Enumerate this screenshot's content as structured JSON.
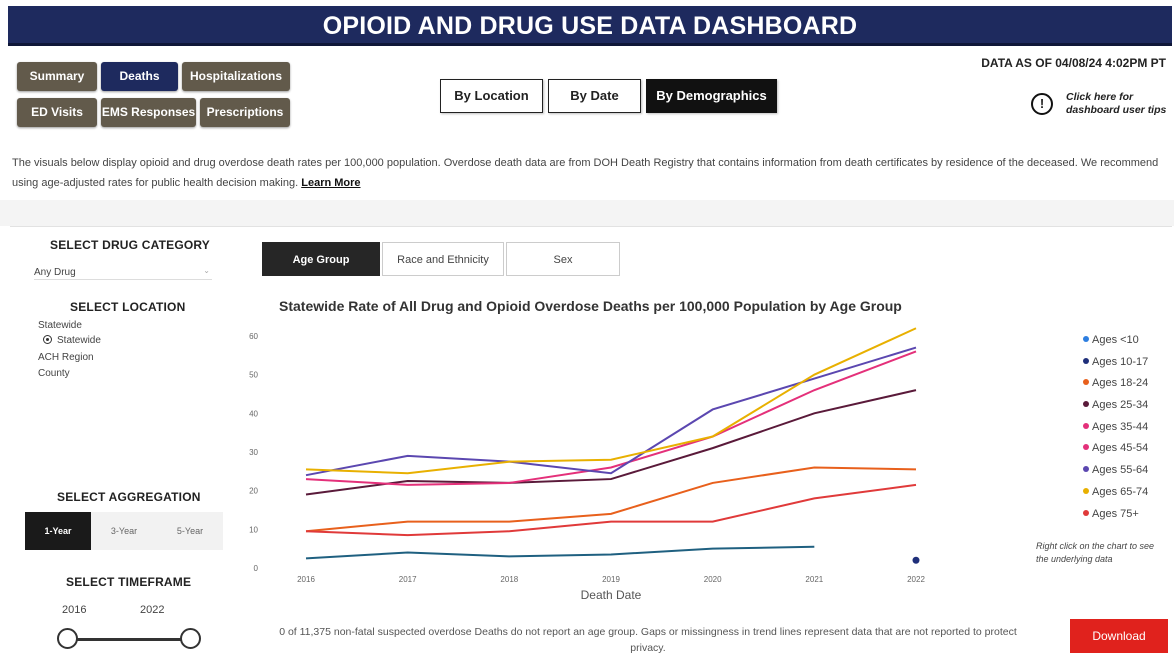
{
  "header": {
    "title": "OPIOID AND DRUG USE DATA DASHBOARD"
  },
  "nav": {
    "summary": "Summary",
    "deaths": "Deaths",
    "hospitalizations": "Hospitalizations",
    "ed_visits": "ED Visits",
    "ems_responses": "EMS Responses",
    "prescriptions": "Prescriptions"
  },
  "views": {
    "by_location": "By Location",
    "by_date": "By Date",
    "by_demographics": "By Demographics"
  },
  "data_as_of": "DATA AS OF 04/08/24 4:02PM PT",
  "tips": {
    "icon": "info-circle-icon",
    "line1": "Click here for",
    "line2": "dashboard user tips"
  },
  "description": {
    "text": "The visuals below display opioid and drug overdose death rates per 100,000 population. Overdose death data are from DOH Death Registry that contains information from death certificates by residence of the deceased. We recommend using age-adjusted rates for public health decision making.",
    "link": "Learn More"
  },
  "sidebar": {
    "drug_label": "SELECT DRUG CATEGORY",
    "drug_value": "Any Drug",
    "location_label": "SELECT LOCATION",
    "loc_statewide": "Statewide",
    "loc_statewide_option": "Statewide",
    "loc_ach": "ACH Region",
    "loc_county": "County",
    "aggregation_label": "SELECT AGGREGATION",
    "agg_1": "1-Year",
    "agg_3": "3-Year",
    "agg_5": "5-Year",
    "timeframe_label": "SELECT TIMEFRAME",
    "tf_start": "2016",
    "tf_end": "2022"
  },
  "tabs": {
    "age": "Age Group",
    "race": "Race and Ethnicity",
    "sex": "Sex"
  },
  "chart_title": "Statewide Rate of All Drug and Opioid Overdose Deaths per 100,000 Population by Age Group",
  "chart_data": {
    "type": "line",
    "title": "Statewide Rate of All Drug and Opioid Overdose Deaths per 100,000 Population by Age Group",
    "xlabel": "Death Date",
    "ylabel": "",
    "x": [
      "2016",
      "2017",
      "2018",
      "2019",
      "2020",
      "2021",
      "2022"
    ],
    "yticks": [
      "0",
      "10",
      "20",
      "30",
      "40",
      "50",
      "60"
    ],
    "ylim": [
      0,
      60
    ],
    "series": [
      {
        "name": "Ages <10",
        "color": "#2d7ee0",
        "values": [
          null,
          null,
          null,
          null,
          null,
          null,
          null
        ]
      },
      {
        "name": "Ages 10-17",
        "color": "#1f2f7a",
        "values": [
          null,
          null,
          null,
          null,
          null,
          null,
          2
        ]
      },
      {
        "name": "Ages 18-24",
        "color": "#e8601c",
        "values": [
          9.5,
          12,
          12,
          14,
          22,
          26,
          25.5
        ]
      },
      {
        "name": "Ages 25-34",
        "color": "#5a1a3a",
        "values": [
          19,
          22.5,
          22,
          23,
          31,
          40,
          46
        ]
      },
      {
        "name": "Ages 35-44",
        "color": "#e4307a",
        "values": [
          23,
          21.5,
          22,
          26,
          34,
          46,
          56
        ]
      },
      {
        "name": "Ages 45-54",
        "color": "#e4307a",
        "values": [
          null,
          null,
          null,
          null,
          null,
          null,
          null
        ]
      },
      {
        "name": "Ages 55-64",
        "color": "#5b47b0",
        "values": [
          24,
          29,
          27.5,
          24.5,
          41,
          49,
          57
        ]
      },
      {
        "name": "Ages 65-74",
        "color": "#e8b000",
        "values": [
          25.5,
          24.5,
          27.5,
          28,
          34,
          50,
          62
        ]
      },
      {
        "name": "Ages 75+",
        "color": "#e03a3a",
        "values": [
          9.5,
          8.5,
          9.5,
          12,
          12,
          18,
          21.5
        ]
      },
      {
        "name": "",
        "color": "#1f6080",
        "values": [
          2.5,
          4,
          3,
          3.5,
          5,
          5.5,
          null
        ]
      }
    ],
    "legend_position": "right",
    "grid": false
  },
  "right_note": "Right click on the chart to see the underlying data",
  "footnote": "0 of 11,375 non-fatal suspected overdose Deaths do not report an age group. Gaps or missingness in trend lines represent data that are not reported to protect privacy.",
  "download_label": "Download"
}
